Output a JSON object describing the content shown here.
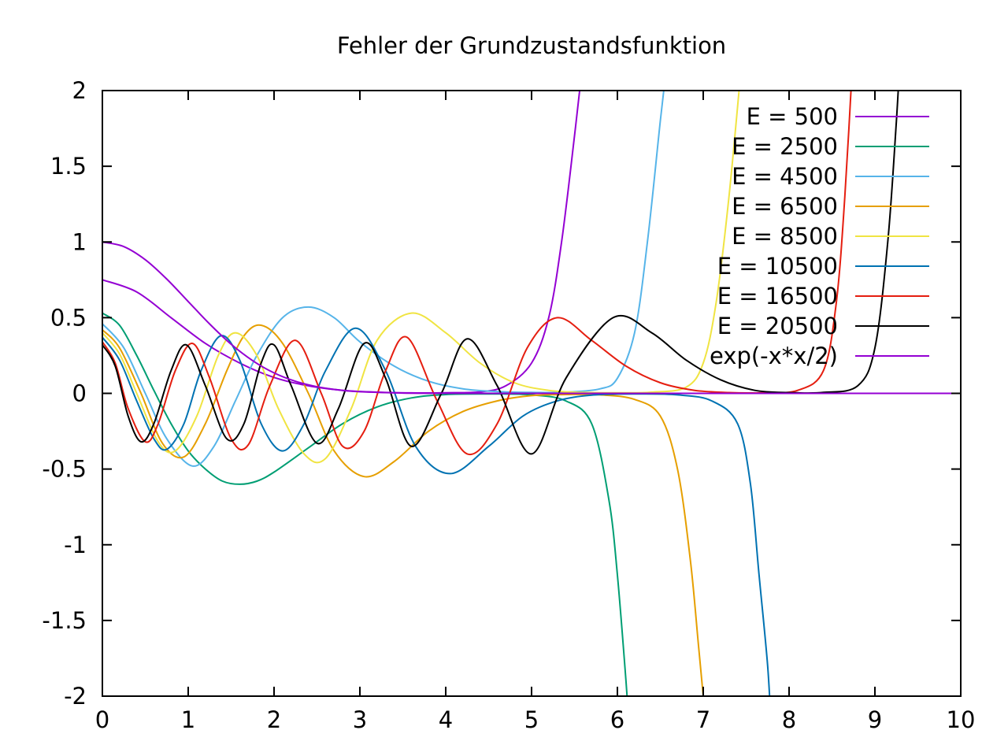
{
  "chart_data": {
    "type": "line",
    "title": "Fehler der Grundzustandsfunktion",
    "xlabel": "",
    "ylabel": "",
    "xlim": [
      0,
      10
    ],
    "ylim": [
      -2,
      2
    ],
    "x_ticks": [
      0,
      1,
      2,
      3,
      4,
      5,
      6,
      7,
      8,
      9,
      10
    ],
    "x_tick_labels": [
      "0",
      "1",
      "2",
      "3",
      "4",
      "5",
      "6",
      "7",
      "8",
      "9",
      "10"
    ],
    "y_ticks": [
      -2,
      -1.5,
      -1,
      -0.5,
      0,
      0.5,
      1,
      1.5,
      2
    ],
    "y_tick_labels": [
      "-2",
      "-1.5",
      "-1",
      "-0.5",
      "0",
      "0.5",
      "1",
      "1.5",
      "2"
    ],
    "grid": false,
    "legend_position": "top-right",
    "series": [
      {
        "name": "E = 500",
        "color": "#9400d3",
        "points": [
          [
            0,
            0.75
          ],
          [
            0.4,
            0.67
          ],
          [
            0.8,
            0.5
          ],
          [
            1.2,
            0.33
          ],
          [
            1.6,
            0.2
          ],
          [
            2.0,
            0.105
          ],
          [
            2.4,
            0.05
          ],
          [
            2.8,
            0.02
          ],
          [
            3.2,
            0.008
          ],
          [
            3.6,
            0.003
          ],
          [
            4.0,
            0.004
          ],
          [
            4.4,
            0.01
          ],
          [
            4.7,
            0.05
          ],
          [
            5.0,
            0.2
          ],
          [
            5.2,
            0.5
          ],
          [
            5.35,
            1.0
          ],
          [
            5.5,
            1.7
          ],
          [
            5.6,
            2.2
          ]
        ]
      },
      {
        "name": "E = 2500",
        "color": "#009e73",
        "points": [
          [
            0,
            0.53
          ],
          [
            0.2,
            0.45
          ],
          [
            0.4,
            0.25
          ],
          [
            0.6,
            0.02
          ],
          [
            0.8,
            -0.2
          ],
          [
            1.0,
            -0.38
          ],
          [
            1.2,
            -0.5
          ],
          [
            1.4,
            -0.58
          ],
          [
            1.6,
            -0.6
          ],
          [
            1.8,
            -0.58
          ],
          [
            2.0,
            -0.52
          ],
          [
            2.4,
            -0.36
          ],
          [
            2.8,
            -0.2
          ],
          [
            3.2,
            -0.09
          ],
          [
            3.6,
            -0.03
          ],
          [
            4.0,
            -0.008
          ],
          [
            4.5,
            -0.004
          ],
          [
            5.0,
            -0.01
          ],
          [
            5.4,
            -0.05
          ],
          [
            5.7,
            -0.2
          ],
          [
            5.9,
            -0.7
          ],
          [
            6.0,
            -1.2
          ],
          [
            6.1,
            -1.9
          ],
          [
            6.15,
            -2.3
          ]
        ]
      },
      {
        "name": "E = 4500",
        "color": "#56b4e9",
        "points": [
          [
            0,
            0.46
          ],
          [
            0.25,
            0.3
          ],
          [
            0.5,
            0.0
          ],
          [
            0.75,
            -0.3
          ],
          [
            1.05,
            -0.48
          ],
          [
            1.3,
            -0.35
          ],
          [
            1.55,
            -0.05
          ],
          [
            1.8,
            0.25
          ],
          [
            2.1,
            0.5
          ],
          [
            2.4,
            0.57
          ],
          [
            2.7,
            0.5
          ],
          [
            3.0,
            0.34
          ],
          [
            3.4,
            0.18
          ],
          [
            3.8,
            0.08
          ],
          [
            4.2,
            0.03
          ],
          [
            4.6,
            0.012
          ],
          [
            5.0,
            0.006
          ],
          [
            5.4,
            0.008
          ],
          [
            5.8,
            0.03
          ],
          [
            6.0,
            0.1
          ],
          [
            6.2,
            0.4
          ],
          [
            6.35,
            1.0
          ],
          [
            6.5,
            1.8
          ],
          [
            6.6,
            2.3
          ]
        ]
      },
      {
        "name": "E = 6500",
        "color": "#e69f00",
        "points": [
          [
            0,
            0.42
          ],
          [
            0.2,
            0.3
          ],
          [
            0.45,
            0.0
          ],
          [
            0.7,
            -0.33
          ],
          [
            0.95,
            -0.42
          ],
          [
            1.2,
            -0.2
          ],
          [
            1.45,
            0.15
          ],
          [
            1.65,
            0.38
          ],
          [
            1.85,
            0.45
          ],
          [
            2.1,
            0.33
          ],
          [
            2.4,
            0.0
          ],
          [
            2.7,
            -0.38
          ],
          [
            3.05,
            -0.55
          ],
          [
            3.4,
            -0.45
          ],
          [
            3.8,
            -0.25
          ],
          [
            4.2,
            -0.12
          ],
          [
            4.6,
            -0.05
          ],
          [
            5.0,
            -0.015
          ],
          [
            5.4,
            -0.008
          ],
          [
            5.8,
            -0.01
          ],
          [
            6.2,
            -0.04
          ],
          [
            6.5,
            -0.15
          ],
          [
            6.7,
            -0.5
          ],
          [
            6.85,
            -1.1
          ],
          [
            6.95,
            -1.7
          ],
          [
            7.05,
            -2.3
          ]
        ]
      },
      {
        "name": "E = 8500",
        "color": "#f0e442",
        "points": [
          [
            0,
            0.4
          ],
          [
            0.2,
            0.26
          ],
          [
            0.4,
            0.0
          ],
          [
            0.65,
            -0.32
          ],
          [
            0.85,
            -0.38
          ],
          [
            1.1,
            -0.15
          ],
          [
            1.35,
            0.25
          ],
          [
            1.55,
            0.4
          ],
          [
            1.8,
            0.25
          ],
          [
            2.05,
            -0.1
          ],
          [
            2.35,
            -0.4
          ],
          [
            2.6,
            -0.43
          ],
          [
            2.9,
            -0.1
          ],
          [
            3.2,
            0.35
          ],
          [
            3.6,
            0.53
          ],
          [
            4.0,
            0.4
          ],
          [
            4.4,
            0.2
          ],
          [
            4.8,
            0.07
          ],
          [
            5.2,
            0.02
          ],
          [
            5.6,
            0.006
          ],
          [
            6.0,
            0.004
          ],
          [
            6.4,
            0.008
          ],
          [
            6.8,
            0.04
          ],
          [
            7.0,
            0.2
          ],
          [
            7.15,
            0.6
          ],
          [
            7.3,
            1.3
          ],
          [
            7.45,
            2.2
          ]
        ]
      },
      {
        "name": "E = 10500",
        "color": "#0072b2",
        "points": [
          [
            0,
            0.37
          ],
          [
            0.2,
            0.22
          ],
          [
            0.4,
            -0.05
          ],
          [
            0.6,
            -0.3
          ],
          [
            0.75,
            -0.37
          ],
          [
            0.95,
            -0.2
          ],
          [
            1.15,
            0.15
          ],
          [
            1.38,
            0.38
          ],
          [
            1.6,
            0.22
          ],
          [
            1.85,
            -0.2
          ],
          [
            2.1,
            -0.38
          ],
          [
            2.35,
            -0.2
          ],
          [
            2.6,
            0.15
          ],
          [
            2.95,
            0.43
          ],
          [
            3.3,
            0.15
          ],
          [
            3.65,
            -0.35
          ],
          [
            4.05,
            -0.53
          ],
          [
            4.5,
            -0.35
          ],
          [
            4.9,
            -0.15
          ],
          [
            5.3,
            -0.05
          ],
          [
            5.7,
            -0.012
          ],
          [
            6.2,
            -0.004
          ],
          [
            6.7,
            -0.01
          ],
          [
            7.1,
            -0.05
          ],
          [
            7.4,
            -0.2
          ],
          [
            7.55,
            -0.6
          ],
          [
            7.65,
            -1.2
          ],
          [
            7.75,
            -1.8
          ],
          [
            7.8,
            -2.3
          ]
        ]
      },
      {
        "name": "E = 16500",
        "color": "#e51e10",
        "points": [
          [
            0,
            0.34
          ],
          [
            0.15,
            0.2
          ],
          [
            0.3,
            -0.1
          ],
          [
            0.5,
            -0.32
          ],
          [
            0.65,
            -0.2
          ],
          [
            0.85,
            0.15
          ],
          [
            1.05,
            0.33
          ],
          [
            1.25,
            0.1
          ],
          [
            1.5,
            -0.3
          ],
          [
            1.7,
            -0.34
          ],
          [
            1.95,
            0.05
          ],
          [
            2.25,
            0.35
          ],
          [
            2.55,
            0.0
          ],
          [
            2.8,
            -0.35
          ],
          [
            3.05,
            -0.25
          ],
          [
            3.3,
            0.15
          ],
          [
            3.55,
            0.37
          ],
          [
            3.9,
            -0.05
          ],
          [
            4.25,
            -0.4
          ],
          [
            4.6,
            -0.2
          ],
          [
            4.95,
            0.3
          ],
          [
            5.3,
            0.5
          ],
          [
            5.7,
            0.35
          ],
          [
            6.1,
            0.18
          ],
          [
            6.5,
            0.07
          ],
          [
            6.9,
            0.02
          ],
          [
            7.3,
            0.005
          ],
          [
            7.7,
            0.004
          ],
          [
            8.1,
            0.02
          ],
          [
            8.4,
            0.15
          ],
          [
            8.55,
            0.6
          ],
          [
            8.65,
            1.3
          ],
          [
            8.75,
            2.3
          ]
        ]
      },
      {
        "name": "E = 20500",
        "color": "#000000",
        "points": [
          [
            0,
            0.32
          ],
          [
            0.15,
            0.18
          ],
          [
            0.3,
            -0.15
          ],
          [
            0.45,
            -0.32
          ],
          [
            0.6,
            -0.2
          ],
          [
            0.8,
            0.15
          ],
          [
            0.98,
            0.32
          ],
          [
            1.2,
            0.05
          ],
          [
            1.45,
            -0.3
          ],
          [
            1.65,
            -0.2
          ],
          [
            1.85,
            0.2
          ],
          [
            2.0,
            0.32
          ],
          [
            2.2,
            0.05
          ],
          [
            2.5,
            -0.33
          ],
          [
            2.75,
            -0.1
          ],
          [
            3.05,
            0.33
          ],
          [
            3.3,
            0.1
          ],
          [
            3.6,
            -0.35
          ],
          [
            3.95,
            0.0
          ],
          [
            4.25,
            0.36
          ],
          [
            4.6,
            0.05
          ],
          [
            5.0,
            -0.4
          ],
          [
            5.4,
            0.1
          ],
          [
            5.95,
            0.5
          ],
          [
            6.4,
            0.4
          ],
          [
            6.8,
            0.22
          ],
          [
            7.2,
            0.09
          ],
          [
            7.6,
            0.02
          ],
          [
            8.0,
            0.005
          ],
          [
            8.4,
            0.006
          ],
          [
            8.8,
            0.05
          ],
          [
            9.0,
            0.3
          ],
          [
            9.15,
            1.0
          ],
          [
            9.25,
            1.8
          ],
          [
            9.3,
            2.3
          ]
        ]
      },
      {
        "name": "exp(-x*x/2)",
        "color": "#9400d3",
        "points": [
          [
            0,
            1.0
          ],
          [
            0.25,
            0.969
          ],
          [
            0.5,
            0.8825
          ],
          [
            0.75,
            0.7548
          ],
          [
            1.0,
            0.6065
          ],
          [
            1.25,
            0.4578
          ],
          [
            1.5,
            0.3247
          ],
          [
            1.75,
            0.2163
          ],
          [
            2.0,
            0.1353
          ],
          [
            2.25,
            0.0796
          ],
          [
            2.5,
            0.0439
          ],
          [
            2.75,
            0.0228
          ],
          [
            3.0,
            0.0111
          ],
          [
            3.5,
            0.0022
          ],
          [
            4.0,
            0.0003
          ],
          [
            5.0,
            0.0
          ],
          [
            6.0,
            0.0
          ],
          [
            7.0,
            0.0
          ],
          [
            8.0,
            0.0
          ],
          [
            9.0,
            0.0
          ],
          [
            10.0,
            0.0
          ]
        ]
      }
    ]
  }
}
